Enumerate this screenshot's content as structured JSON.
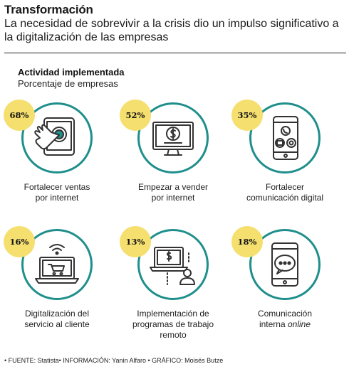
{
  "header": {
    "title": "Transformación",
    "subtitle": "La necesidad de sobrevivir a la crisis dio un impulso significativo a la digitalización de las empresas"
  },
  "section": {
    "heading": "Actividad implementada",
    "subheading": "Porcentaje de empresas"
  },
  "colors": {
    "ring": "#1f8f8c",
    "badge": "#f5df6f",
    "icon_stroke": "#333333"
  },
  "chart_data": {
    "type": "table",
    "title": "Actividad implementada",
    "ylabel": "Porcentaje de empresas",
    "categories": [
      "Fortalecer ventas por internet",
      "Empezar a vender por internet",
      "Fortalecer comunicación digital",
      "Digitalización del servicio al cliente",
      "Implementación de programas de trabajo remoto",
      "Comunicación interna online"
    ],
    "values": [
      68,
      52,
      35,
      16,
      13,
      18
    ],
    "items": [
      {
        "value_label": "68%",
        "label": "Fortalecer ventas por internet",
        "icon": "tablet-touch-icon"
      },
      {
        "value_label": "52%",
        "label": "Empezar a vender por internet",
        "icon": "monitor-dollar-icon"
      },
      {
        "value_label": "35%",
        "label": "Fortalecer comunicación digital",
        "icon": "phone-contacts-icon"
      },
      {
        "value_label": "16%",
        "label": "Digitalización del servicio al cliente",
        "icon": "laptop-cart-icon"
      },
      {
        "value_label": "13%",
        "label": "Implementación de programas de trabajo remoto",
        "icon": "remote-work-icon"
      },
      {
        "value_label": "18%",
        "label_main": "Comunicación interna",
        "label_italic": "online",
        "icon": "phone-chat-icon"
      }
    ]
  },
  "footer": {
    "text": "• FUENTE: Statista• INFORMACIÓN: Yanin Alfaro • GRÁFICO: Moisés Butze"
  }
}
